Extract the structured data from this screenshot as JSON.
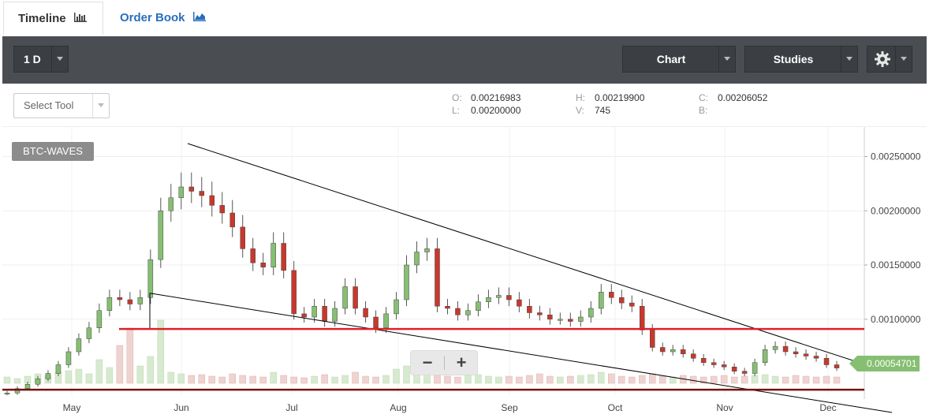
{
  "tabs": [
    {
      "label": "Timeline",
      "icon": "bar-chart-icon",
      "active": true
    },
    {
      "label": "Order Book",
      "icon": "area-chart-icon",
      "active": false
    }
  ],
  "toolbar": {
    "period_label": "1 D",
    "chart_label": "Chart",
    "studies_label": "Studies",
    "settings_icon": "gear-icon"
  },
  "select_tool": {
    "label": "Select Tool"
  },
  "ohlc": {
    "o_label": "O:",
    "o_value": "0.00216983",
    "h_label": "H:",
    "h_value": "0.00219900",
    "c_label": "C:",
    "c_value": "0.00206052",
    "l_label": "L:",
    "l_value": "0.00200000",
    "v_label": "V:",
    "v_value": "745",
    "b_label": "B:",
    "b_value": ""
  },
  "symbol": "BTC-WAVES",
  "zoom": {
    "minus": "−",
    "plus": "+"
  },
  "last_price": "0.00054701",
  "colors": {
    "up": "#86bf72",
    "down": "#c8382c",
    "line": "#000000",
    "support": "#e0202a",
    "bottom_line": "#7a1010"
  },
  "chart_data": {
    "type": "candlestick",
    "symbol": "BTC-WAVES",
    "x_ticks": [
      "May",
      "Jun",
      "Jul",
      "Aug",
      "Sep",
      "Oct",
      "Nov",
      "Dec"
    ],
    "y_ticks": [
      "0.00250000",
      "0.00200000",
      "0.00150000",
      "0.00100000"
    ],
    "ylim": [
      0.0003,
      0.0027
    ],
    "series": [
      {
        "name": "close",
        "values": [
          0.00032,
          0.00036,
          0.0004,
          0.00045,
          0.0005,
          0.00058,
          0.0007,
          0.00082,
          0.00092,
          0.00108,
          0.0012,
          0.00118,
          0.00114,
          0.0012,
          0.00155,
          0.002,
          0.00212,
          0.00222,
          0.00218,
          0.00214,
          0.00205,
          0.00198,
          0.00185,
          0.00165,
          0.00152,
          0.00148,
          0.0017,
          0.00145,
          0.00105,
          0.00102,
          0.00112,
          0.00098,
          0.0011,
          0.0013,
          0.0011,
          0.00102,
          0.00092,
          0.00105,
          0.00118,
          0.0015,
          0.00162,
          0.00165,
          0.00112,
          0.0011,
          0.00104,
          0.00108,
          0.00116,
          0.0012,
          0.00122,
          0.00118,
          0.00112,
          0.00106,
          0.00104,
          0.001,
          0.001,
          0.00098,
          0.00102,
          0.0011,
          0.00125,
          0.0012,
          0.00115,
          0.00112,
          0.0009,
          0.00074,
          0.0007,
          0.00072,
          0.00068,
          0.00064,
          0.0006,
          0.00058,
          0.00056,
          0.00052,
          0.0005,
          0.0006,
          0.00072,
          0.00075,
          0.0007,
          0.00068,
          0.00066,
          0.00064,
          0.00058,
          0.00055
        ]
      },
      {
        "name": "volume",
        "values": [
          8,
          6,
          9,
          12,
          10,
          14,
          16,
          18,
          12,
          30,
          20,
          48,
          70,
          22,
          34,
          80,
          14,
          12,
          10,
          11,
          9,
          8,
          12,
          10,
          9,
          8,
          14,
          10,
          8,
          7,
          9,
          11,
          8,
          10,
          14,
          9,
          8,
          10,
          18,
          22,
          16,
          12,
          10,
          9,
          8,
          10,
          11,
          9,
          8,
          9,
          8,
          10,
          12,
          9,
          8,
          9,
          10,
          11,
          14,
          12,
          9,
          8,
          10,
          12,
          9,
          8,
          10,
          9,
          8,
          9,
          10,
          8,
          9,
          10,
          11,
          9,
          8,
          10,
          9,
          8,
          9,
          8
        ]
      }
    ],
    "annotations": {
      "trendlines": "descending channel",
      "horizontal_levels": [
        0.00091,
        0.00035
      ]
    },
    "last_value": 0.00054701,
    "grid": true
  }
}
